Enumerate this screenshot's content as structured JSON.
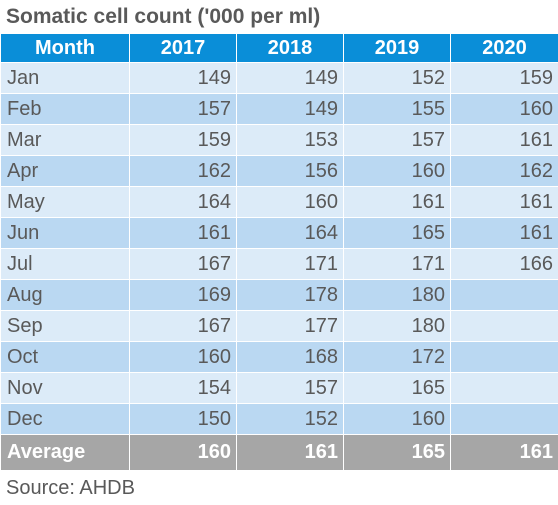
{
  "title": "Somatic cell count ('000 per ml)",
  "table": {
    "headers": [
      "Month",
      "2017",
      "2018",
      "2019",
      "2020"
    ],
    "rows": [
      [
        "Jan",
        "149",
        "149",
        "152",
        "159"
      ],
      [
        "Feb",
        "157",
        "149",
        "155",
        "160"
      ],
      [
        "Mar",
        "159",
        "153",
        "157",
        "161"
      ],
      [
        "Apr",
        "162",
        "156",
        "160",
        "162"
      ],
      [
        "May",
        "164",
        "160",
        "161",
        "161"
      ],
      [
        "Jun",
        "161",
        "164",
        "165",
        "161"
      ],
      [
        "Jul",
        "167",
        "171",
        "171",
        "166"
      ],
      [
        "Aug",
        "169",
        "178",
        "180",
        ""
      ],
      [
        "Sep",
        "167",
        "177",
        "180",
        ""
      ],
      [
        "Oct",
        "160",
        "168",
        "172",
        ""
      ],
      [
        "Nov",
        "154",
        "157",
        "165",
        ""
      ],
      [
        "Dec",
        "150",
        "152",
        "160",
        ""
      ]
    ],
    "footer": [
      "Average",
      "160",
      "161",
      "165",
      "161"
    ]
  },
  "source": "Source: AHDB",
  "colors": {
    "header_bg": "#0a8ed8",
    "row_light": "#dcebf8",
    "row_dark": "#bad8f2",
    "footer_bg": "#a6a6a6",
    "text": "#595959"
  }
}
